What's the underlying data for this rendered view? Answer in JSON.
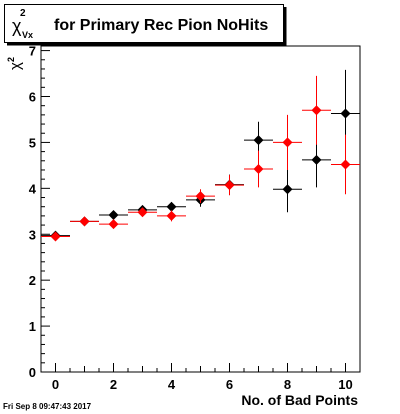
{
  "chart_data": {
    "type": "scatter",
    "title_symbol": "χ",
    "title_superscript": "2",
    "title_subscript": "Vx",
    "title_text": "for Primary Rec Pion NoHits",
    "xlabel": "No. of Bad Points",
    "ylabel_symbol": "χ",
    "ylabel_superscript": "2",
    "xlim": [
      -0.5,
      10.5
    ],
    "ylim": [
      0,
      7.1
    ],
    "xticks": [
      "0",
      "2",
      "4",
      "6",
      "8",
      "10"
    ],
    "yticks": [
      "0",
      "1",
      "2",
      "3",
      "4",
      "5",
      "6",
      "7"
    ],
    "grid": true,
    "timestamp": "Fri Sep  8 09:47:43 2017",
    "series": [
      {
        "color": "#000000",
        "points": [
          {
            "x": 0,
            "y": 2.97,
            "yerr": 0.03
          },
          {
            "x": 1,
            "y": 3.28,
            "yerr": 0.04
          },
          {
            "x": 2,
            "y": 3.42,
            "yerr": 0.06
          },
          {
            "x": 3,
            "y": 3.53,
            "yerr": 0.07
          },
          {
            "x": 4,
            "y": 3.6,
            "yerr": 0.1
          },
          {
            "x": 5,
            "y": 3.75,
            "yerr": 0.15
          },
          {
            "x": 6,
            "y": 4.08,
            "yerr": 0.22
          },
          {
            "x": 7,
            "y": 5.05,
            "yerr": 0.4
          },
          {
            "x": 8,
            "y": 3.98,
            "yerr": 0.5
          },
          {
            "x": 9,
            "y": 4.62,
            "yerr": 0.6
          },
          {
            "x": 10,
            "y": 5.63,
            "yerr": 0.95
          }
        ]
      },
      {
        "color": "#ff0000",
        "points": [
          {
            "x": 0,
            "y": 2.95,
            "yerr": 0.03
          },
          {
            "x": 1,
            "y": 3.28,
            "yerr": 0.04
          },
          {
            "x": 2,
            "y": 3.22,
            "yerr": 0.07
          },
          {
            "x": 3,
            "y": 3.48,
            "yerr": 0.08
          },
          {
            "x": 4,
            "y": 3.4,
            "yerr": 0.12
          },
          {
            "x": 5,
            "y": 3.83,
            "yerr": 0.15
          },
          {
            "x": 6,
            "y": 4.07,
            "yerr": 0.22
          },
          {
            "x": 7,
            "y": 4.42,
            "yerr": 0.4
          },
          {
            "x": 8,
            "y": 5.0,
            "yerr": 0.6
          },
          {
            "x": 9,
            "y": 5.7,
            "yerr": 0.75
          },
          {
            "x": 10,
            "y": 4.52,
            "yerr": 0.65
          }
        ]
      }
    ]
  }
}
